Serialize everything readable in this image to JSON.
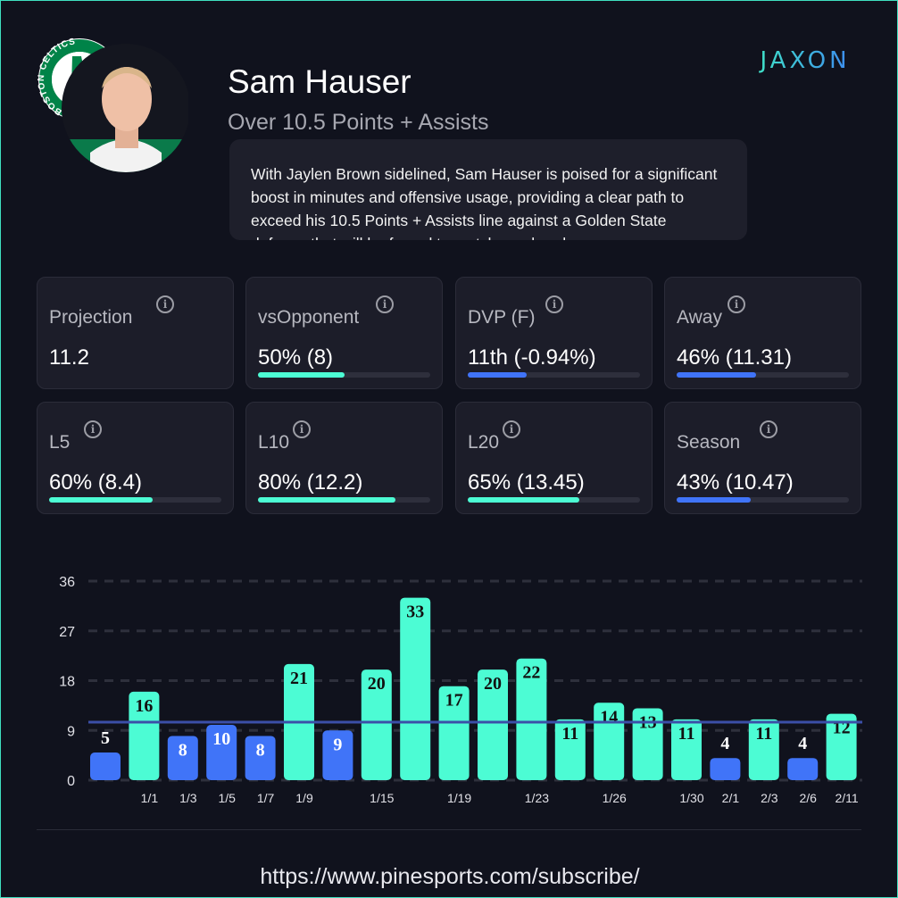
{
  "player": {
    "name": "Sam Hauser",
    "prop": "Over 10.5 Points + Assists",
    "team_logo_text": "BOSTON CELTICS"
  },
  "description": "With Jaylen Brown sidelined, Sam Hauser is poised for a significant boost in minutes and offensive usage, providing a clear path to exceed his 10.5 Points + Assists line against a Golden State defense that will be forced to match up elsewhere.",
  "brand": "JAXON",
  "colors": {
    "hit": "#4cfcd4",
    "miss": "#4074f8",
    "line": "#3b4fa8"
  },
  "stats": [
    {
      "label": "Projection",
      "value": "11.2",
      "fill": null,
      "color": null
    },
    {
      "label": "vsOpponent",
      "value": "50% (8)",
      "fill": 50,
      "color": "hit"
    },
    {
      "label": "DVP (F)",
      "value": "11th (-0.94%)",
      "fill": 34,
      "color": "miss"
    },
    {
      "label": "Away",
      "value": "46% (11.31)",
      "fill": 46,
      "color": "miss"
    },
    {
      "label": "L5",
      "value": "60% (8.4)",
      "fill": 60,
      "color": "hit"
    },
    {
      "label": "L10",
      "value": "80% (12.2)",
      "fill": 80,
      "color": "hit"
    },
    {
      "label": "L20",
      "value": "65% (13.45)",
      "fill": 65,
      "color": "hit"
    },
    {
      "label": "Season",
      "value": "43% (10.47)",
      "fill": 43,
      "color": "miss"
    }
  ],
  "chart_data": {
    "type": "bar",
    "line": 10.5,
    "ylim": [
      0,
      36
    ],
    "yticks": [
      0,
      9,
      18,
      27,
      36
    ],
    "categories": [
      "",
      "1/1",
      "1/3",
      "1/5",
      "1/7",
      "1/9",
      "",
      "1/15",
      "",
      "1/19",
      "",
      "1/23",
      "",
      "1/26",
      "",
      "1/30",
      "2/1",
      "2/3",
      "2/6",
      "2/11"
    ],
    "values": [
      5,
      16,
      8,
      10,
      8,
      21,
      9,
      20,
      33,
      17,
      20,
      22,
      11,
      14,
      13,
      11,
      4,
      11,
      4,
      12
    ]
  },
  "footer": {
    "url": "https://www.pinesports.com/subscribe/"
  }
}
